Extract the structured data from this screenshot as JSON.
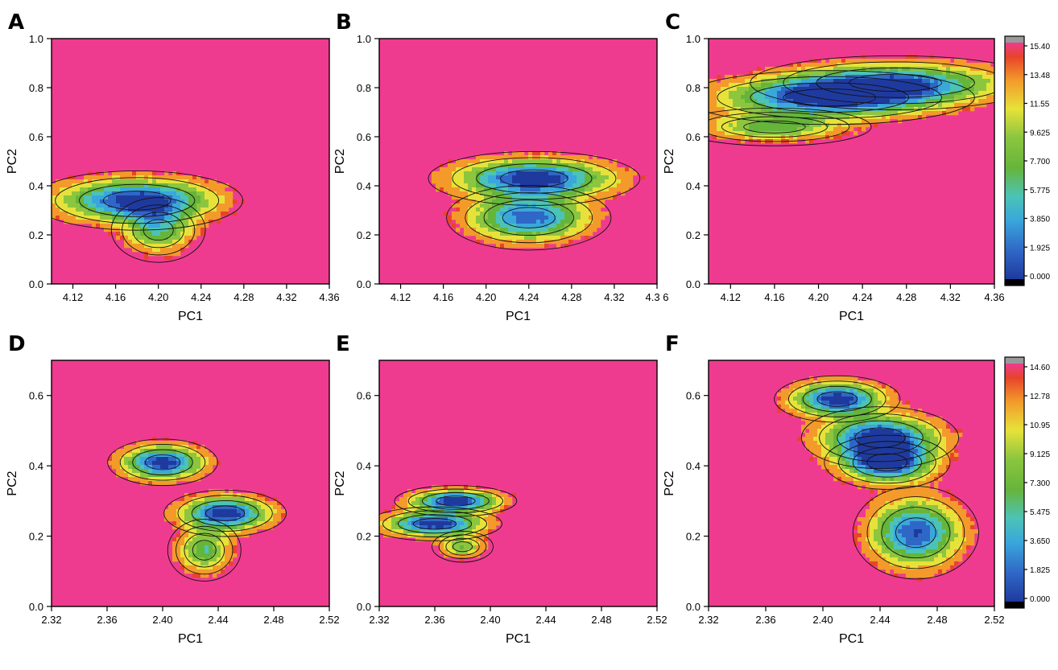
{
  "chart_data": [
    {
      "type": "heatmap",
      "panel": "A",
      "xlabel": "PC1",
      "ylabel": "PC2",
      "xlim": [
        4.1,
        4.36
      ],
      "ylim": [
        0.0,
        1.0
      ],
      "xticks": [
        "4.12",
        "4.16",
        "4.20",
        "4.24",
        "4.28",
        "4.32",
        "4.36"
      ],
      "yticks": [
        "0.0",
        "0.2",
        "0.4",
        "0.6",
        "0.8",
        "1.0"
      ],
      "wells": [
        {
          "x": 4.18,
          "y": 0.34,
          "sx": 0.045,
          "sy": 0.055,
          "w": 1.0
        },
        {
          "x": 4.2,
          "y": 0.22,
          "sx": 0.02,
          "sy": 0.06,
          "w": 0.55
        }
      ]
    },
    {
      "type": "heatmap",
      "panel": "B",
      "xlabel": "PC1",
      "ylabel": "PC2",
      "xlim": [
        4.1,
        4.36
      ],
      "ylim": [
        0.0,
        1.0
      ],
      "xticks": [
        "4.12",
        "4.16",
        "4.20",
        "4.24",
        "4.28",
        "4.32",
        "4.3 6"
      ],
      "yticks": [
        "0.0",
        "0.2",
        "0.4",
        "0.6",
        "0.8",
        "1.0"
      ],
      "wells": [
        {
          "x": 4.245,
          "y": 0.43,
          "sx": 0.045,
          "sy": 0.05,
          "w": 1.0
        },
        {
          "x": 4.24,
          "y": 0.27,
          "sx": 0.035,
          "sy": 0.06,
          "w": 0.85
        }
      ]
    },
    {
      "type": "heatmap",
      "panel": "C",
      "xlabel": "PC1",
      "ylabel": "PC2",
      "xlim": [
        4.1,
        4.36
      ],
      "ylim": [
        0.0,
        1.0
      ],
      "xticks": [
        "4.12",
        "4.16",
        "4.20",
        "4.24",
        "4.28",
        "4.32",
        "4.36"
      ],
      "yticks": [
        "0.0",
        "0.2",
        "0.4",
        "0.6",
        "0.8",
        "1.0"
      ],
      "wells": [
        {
          "x": 4.21,
          "y": 0.76,
          "sx": 0.06,
          "sy": 0.05,
          "w": 1.0
        },
        {
          "x": 4.27,
          "y": 0.82,
          "sx": 0.06,
          "sy": 0.05,
          "w": 0.8
        },
        {
          "x": 4.16,
          "y": 0.64,
          "sx": 0.04,
          "sy": 0.035,
          "w": 0.5
        }
      ]
    },
    {
      "type": "heatmap",
      "panel": "D",
      "xlabel": "PC1",
      "ylabel": "PC2",
      "xlim": [
        2.32,
        2.52
      ],
      "ylim": [
        0.0,
        0.7
      ],
      "xticks": [
        "2.32",
        "2.36",
        "2.40",
        "2.44",
        "2.48",
        "2.52"
      ],
      "yticks": [
        "0.0",
        "0.2",
        "0.4",
        "0.6"
      ],
      "wells": [
        {
          "x": 2.4,
          "y": 0.41,
          "sx": 0.018,
          "sy": 0.03,
          "w": 1.0
        },
        {
          "x": 2.445,
          "y": 0.265,
          "sx": 0.02,
          "sy": 0.03,
          "w": 1.0
        },
        {
          "x": 2.43,
          "y": 0.16,
          "sx": 0.012,
          "sy": 0.04,
          "w": 0.55
        }
      ]
    },
    {
      "type": "heatmap",
      "panel": "E",
      "xlabel": "PC1",
      "ylabel": "PC2",
      "xlim": [
        2.32,
        2.52
      ],
      "ylim": [
        0.0,
        0.7
      ],
      "xticks": [
        "2.32",
        "2.36",
        "2.40",
        "2.44",
        "2.48",
        "2.52"
      ],
      "yticks": [
        "0.0",
        "0.2",
        "0.4",
        "0.6"
      ],
      "wells": [
        {
          "x": 2.375,
          "y": 0.3,
          "sx": 0.02,
          "sy": 0.02,
          "w": 1.0
        },
        {
          "x": 2.36,
          "y": 0.235,
          "sx": 0.022,
          "sy": 0.022,
          "w": 1.0
        },
        {
          "x": 2.38,
          "y": 0.17,
          "sx": 0.01,
          "sy": 0.02,
          "w": 0.45
        }
      ]
    },
    {
      "type": "heatmap",
      "panel": "F",
      "xlabel": "PC1",
      "ylabel": "PC2",
      "xlim": [
        2.32,
        2.52
      ],
      "ylim": [
        0.0,
        0.7
      ],
      "xticks": [
        "2.32",
        "2.36",
        "2.40",
        "2.44",
        "2.48",
        "2.52"
      ],
      "yticks": [
        "0.0",
        "0.2",
        "0.4",
        "0.6"
      ],
      "wells": [
        {
          "x": 2.41,
          "y": 0.59,
          "sx": 0.02,
          "sy": 0.03,
          "w": 1.0
        },
        {
          "x": 2.44,
          "y": 0.48,
          "sx": 0.025,
          "sy": 0.04,
          "w": 1.0
        },
        {
          "x": 2.445,
          "y": 0.41,
          "sx": 0.02,
          "sy": 0.035,
          "w": 1.0
        },
        {
          "x": 2.465,
          "y": 0.21,
          "sx": 0.02,
          "sy": 0.06,
          "w": 0.9
        }
      ]
    }
  ],
  "colorbars": [
    {
      "panels": "A-C",
      "labels": [
        "15.40",
        "13.48",
        "11.55",
        "9.625",
        "7.700",
        "5.775",
        "3.850",
        "1.925",
        "0.000"
      ]
    },
    {
      "panels": "D-F",
      "labels": [
        "14.60",
        "12.78",
        "10.95",
        "9.125",
        "7.300",
        "5.475",
        "3.650",
        "1.825",
        "0.000"
      ]
    }
  ],
  "colors": {
    "background": "#ef3b8f",
    "colormap": [
      "#1f3a9e",
      "#2f67c6",
      "#3aa7db",
      "#4cc3b6",
      "#66b53b",
      "#8cc63f",
      "#e7e23a",
      "#f39a2b",
      "#e8442b",
      "#ef3b8f"
    ]
  }
}
